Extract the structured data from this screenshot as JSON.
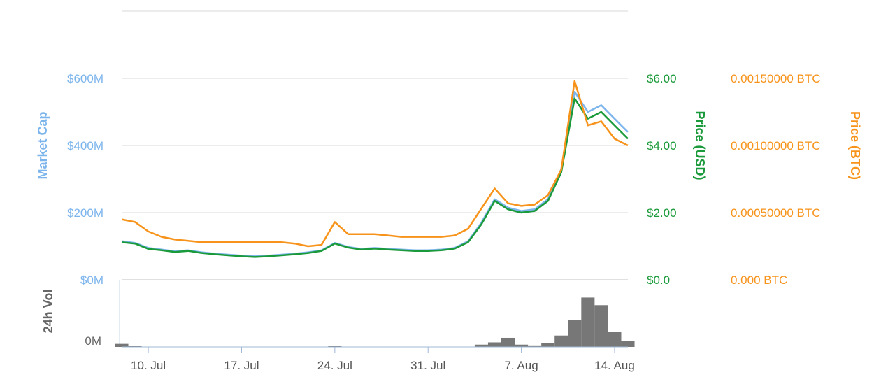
{
  "chart_data": {
    "type": "line",
    "x": [
      "2017-07-08",
      "2017-07-09",
      "2017-07-10",
      "2017-07-11",
      "2017-07-12",
      "2017-07-13",
      "2017-07-14",
      "2017-07-15",
      "2017-07-16",
      "2017-07-17",
      "2017-07-18",
      "2017-07-19",
      "2017-07-20",
      "2017-07-21",
      "2017-07-22",
      "2017-07-23",
      "2017-07-24",
      "2017-07-25",
      "2017-07-26",
      "2017-07-27",
      "2017-07-28",
      "2017-07-29",
      "2017-07-30",
      "2017-07-31",
      "2017-08-01",
      "2017-08-02",
      "2017-08-03",
      "2017-08-04",
      "2017-08-05",
      "2017-08-06",
      "2017-08-07",
      "2017-08-08",
      "2017-08-09",
      "2017-08-10",
      "2017-08-11",
      "2017-08-12",
      "2017-08-13",
      "2017-08-14",
      "2017-08-15"
    ],
    "series": [
      {
        "name": "Market Cap",
        "axis": "market_cap",
        "color": "#7cb5ec",
        "values": [
          115,
          110,
          95,
          90,
          85,
          88,
          82,
          78,
          75,
          72,
          70,
          72,
          75,
          78,
          82,
          88,
          110,
          98,
          92,
          95,
          92,
          90,
          88,
          88,
          90,
          95,
          115,
          170,
          240,
          215,
          205,
          210,
          240,
          330,
          560,
          500,
          520,
          480,
          440
        ]
      },
      {
        "name": "Price (USD)",
        "axis": "usd",
        "color": "#1a9a3a",
        "values": [
          1.12,
          1.08,
          0.92,
          0.88,
          0.83,
          0.86,
          0.8,
          0.76,
          0.73,
          0.7,
          0.68,
          0.7,
          0.73,
          0.76,
          0.8,
          0.86,
          1.08,
          0.96,
          0.9,
          0.93,
          0.9,
          0.88,
          0.86,
          0.86,
          0.88,
          0.93,
          1.12,
          1.65,
          2.35,
          2.1,
          2.0,
          2.05,
          2.35,
          3.2,
          5.4,
          4.8,
          5.0,
          4.6,
          4.2
        ]
      },
      {
        "name": "Price (BTC)",
        "axis": "btc",
        "color": "#f7931a",
        "values": [
          0.00045,
          0.00043,
          0.00036,
          0.00032,
          0.0003,
          0.00029,
          0.00028,
          0.00028,
          0.00028,
          0.00028,
          0.00028,
          0.00028,
          0.00028,
          0.00027,
          0.00025,
          0.00026,
          0.00043,
          0.00034,
          0.00034,
          0.00034,
          0.00033,
          0.00032,
          0.00032,
          0.00032,
          0.00032,
          0.00033,
          0.00038,
          0.00053,
          0.00068,
          0.00057,
          0.00055,
          0.00056,
          0.00063,
          0.00082,
          0.00148,
          0.00115,
          0.00118,
          0.00105,
          0.001
        ]
      }
    ],
    "volume": {
      "name": "24h Vol",
      "color": "#777777",
      "values": [
        4,
        1,
        0,
        0,
        0,
        0,
        0,
        0,
        0,
        0,
        0,
        0,
        0,
        0,
        0,
        0,
        1,
        0,
        0,
        0,
        0,
        0,
        0,
        0,
        0,
        0,
        0,
        3,
        6,
        12,
        3,
        2,
        5,
        15,
        35,
        65,
        55,
        20,
        8
      ]
    },
    "axes": {
      "market_cap": {
        "title": "Market Cap",
        "ticks": [
          "$0M",
          "$200M",
          "$400M",
          "$600M"
        ],
        "ylim": [
          0,
          600
        ],
        "color": "#7cb5ec"
      },
      "usd": {
        "title": "Price (USD)",
        "ticks": [
          "$0.0",
          "$2.00",
          "$4.00",
          "$6.00"
        ],
        "ylim": [
          0,
          6
        ],
        "color": "#1a9a3a"
      },
      "btc": {
        "title": "Price (BTC)",
        "ticks": [
          "0.000 BTC",
          "0.00050000 BTC",
          "0.00100000 BTC",
          "0.00150000 BTC"
        ],
        "ylim": [
          0,
          0.0015
        ],
        "color": "#f7931a"
      },
      "volume": {
        "title": "24h Vol",
        "ticks": [
          "0M"
        ],
        "color": "#666666"
      }
    },
    "x_ticks": [
      {
        "date": "2017-07-10",
        "label": "10. Jul"
      },
      {
        "date": "2017-07-17",
        "label": "17. Jul"
      },
      {
        "date": "2017-07-24",
        "label": "24. Jul"
      },
      {
        "date": "2017-07-31",
        "label": "31. Jul"
      },
      {
        "date": "2017-08-07",
        "label": "7. Aug"
      },
      {
        "date": "2017-08-14",
        "label": "14. Aug"
      }
    ],
    "grid": true,
    "legend": "none"
  }
}
